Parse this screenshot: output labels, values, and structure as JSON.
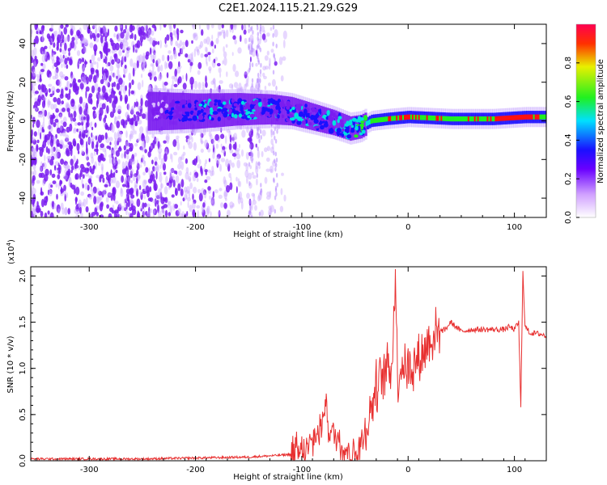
{
  "page": {
    "title": "C2E1.2024.115.21.29.G29"
  },
  "colors": {
    "noise_purple": "#7a1cf0",
    "signal_blue": "#1a10ff",
    "signal_cyan": "#00e0e0",
    "signal_green": "#20f020",
    "signal_red": "#ff1010",
    "snr_line": "#e83030"
  },
  "chart_data": [
    {
      "type": "heatmap",
      "title": "C2E1.2024.115.21.29.G29",
      "xlabel": "Height of straight line (km)",
      "ylabel": "Frequency (Hz)",
      "xlim": [
        -355,
        130
      ],
      "ylim": [
        -50,
        50
      ],
      "xticks": [
        -300,
        -200,
        -100,
        0,
        100
      ],
      "yticks": [
        -40,
        -20,
        0,
        20,
        40
      ],
      "xtick_labels": [
        "-300",
        "-200",
        "-100",
        "0",
        "100"
      ],
      "ytick_labels": [
        "-40",
        "-20",
        "0",
        "20",
        "40"
      ],
      "colorbar": {
        "label": "Normalized spectral amplitude",
        "range": [
          0,
          1
        ],
        "ticks": [
          0.0,
          0.2,
          0.4,
          0.6,
          0.8
        ],
        "tick_labels": [
          "0.0",
          "0.2",
          "0.4",
          "0.6",
          "0.8"
        ]
      },
      "signal_track": {
        "x": [
          -240,
          -200,
          -160,
          -130,
          -110,
          -90,
          -70,
          -55,
          -45,
          -35,
          -20,
          0,
          40,
          80,
          110,
          130
        ],
        "frequency": [
          5,
          5,
          6,
          6,
          5,
          2,
          -1,
          -4,
          -3,
          0,
          1,
          2,
          1,
          1,
          2,
          2
        ]
      },
      "amplitude_along_track": {
        "x": [
          -240,
          -200,
          -150,
          -100,
          -80,
          -60,
          -40,
          -20,
          0,
          40,
          80,
          110,
          130
        ],
        "amplitude": [
          0.15,
          0.3,
          0.32,
          0.3,
          0.28,
          0.35,
          0.5,
          0.7,
          0.75,
          0.65,
          0.75,
          0.8,
          0.65
        ]
      }
    },
    {
      "type": "line",
      "xlabel": "Height of straight line (km)",
      "ylabel": "SNR (10 * v/v)",
      "y_multiplier_label": "(x10",
      "y_multiplier_exponent": "4",
      "y_multiplier_close": ")",
      "xlim": [
        -355,
        130
      ],
      "ylim": [
        0,
        2.1
      ],
      "xticks": [
        -300,
        -200,
        -100,
        0,
        100
      ],
      "yticks": [
        0.0,
        0.5,
        1.0,
        1.5,
        2.0
      ],
      "xtick_labels": [
        "-300",
        "-200",
        "-100",
        "0",
        "100"
      ],
      "ytick_labels": [
        "0.0",
        "0.5",
        "1.0",
        "1.5",
        "2.0"
      ],
      "series": [
        {
          "x": [
            -355,
            -300,
            -250,
            -200,
            -150,
            -120,
            -100,
            -95,
            -90,
            -85,
            -80,
            -78,
            -75,
            -70,
            -65,
            -60,
            -55,
            -50,
            -45,
            -40,
            -35,
            -30,
            -25,
            -20,
            -15,
            -12,
            -10,
            -8,
            -5,
            0,
            5,
            10,
            15,
            20,
            25,
            30,
            35,
            40,
            50,
            60,
            70,
            80,
            90,
            95,
            100,
            104,
            106,
            108,
            110,
            115,
            120,
            125,
            130
          ],
          "values": [
            0.02,
            0.02,
            0.02,
            0.03,
            0.04,
            0.06,
            0.08,
            0.12,
            0.2,
            0.3,
            0.4,
            0.75,
            0.35,
            0.28,
            0.22,
            0.15,
            0.1,
            0.05,
            0.15,
            0.35,
            0.55,
            0.8,
            0.9,
            1.0,
            1.05,
            2.05,
            0.9,
            1.0,
            1.05,
            1.0,
            1.05,
            1.1,
            1.2,
            1.3,
            1.38,
            1.4,
            1.42,
            1.5,
            1.4,
            1.42,
            1.42,
            1.42,
            1.42,
            1.45,
            1.42,
            1.5,
            0.58,
            2.05,
            1.45,
            1.38,
            1.38,
            1.37,
            1.35
          ]
        }
      ]
    }
  ]
}
